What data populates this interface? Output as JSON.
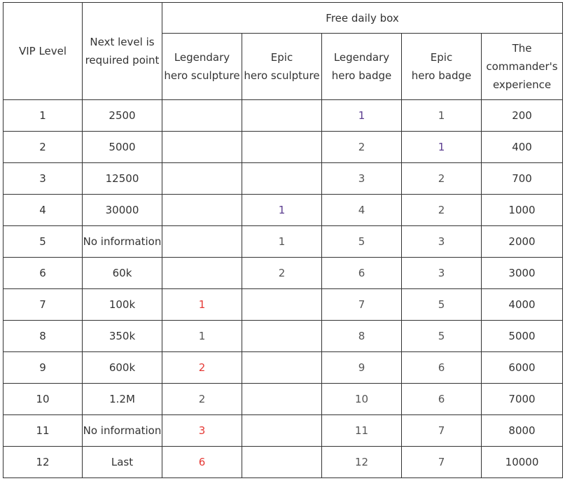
{
  "table": {
    "header_vip": "VIP Level",
    "header_next": "Next level is\nrequired point",
    "group_header": "Free daily box",
    "sub_headers": [
      "Legendary\nhero sculpture",
      "Epic\nhero sculpture",
      "Legendary\nhero badge",
      "Epic\nhero badge",
      "The\ncommander's\nexperience"
    ],
    "rows": [
      {
        "vip": "1",
        "next": "2500",
        "leg_sculpture": "",
        "epic_sculpture": "",
        "leg_badge": "1",
        "epic_badge": "1",
        "exp": "200"
      },
      {
        "vip": "2",
        "next": "5000",
        "leg_sculpture": "",
        "epic_sculpture": "",
        "leg_badge": "2",
        "epic_badge": "1",
        "exp": "400"
      },
      {
        "vip": "3",
        "next": "12500",
        "leg_sculpture": "",
        "epic_sculpture": "",
        "leg_badge": "3",
        "epic_badge": "2",
        "exp": "700"
      },
      {
        "vip": "4",
        "next": "30000",
        "leg_sculpture": "",
        "epic_sculpture": "1",
        "leg_badge": "4",
        "epic_badge": "2",
        "exp": "1000"
      },
      {
        "vip": "5",
        "next": "No information",
        "leg_sculpture": "",
        "epic_sculpture": "1",
        "leg_badge": "5",
        "epic_badge": "3",
        "exp": "2000"
      },
      {
        "vip": "6",
        "next": "60k",
        "leg_sculpture": "",
        "epic_sculpture": "2",
        "leg_badge": "6",
        "epic_badge": "3",
        "exp": "3000"
      },
      {
        "vip": "7",
        "next": "100k",
        "leg_sculpture": "1",
        "epic_sculpture": "",
        "leg_badge": "7",
        "epic_badge": "5",
        "exp": "4000"
      },
      {
        "vip": "8",
        "next": "350k",
        "leg_sculpture": "1",
        "epic_sculpture": "",
        "leg_badge": "8",
        "epic_badge": "5",
        "exp": "5000"
      },
      {
        "vip": "9",
        "next": "600k",
        "leg_sculpture": "2",
        "epic_sculpture": "",
        "leg_badge": "9",
        "epic_badge": "6",
        "exp": "6000"
      },
      {
        "vip": "10",
        "next": "1.2M",
        "leg_sculpture": "2",
        "epic_sculpture": "",
        "leg_badge": "10",
        "epic_badge": "6",
        "exp": "7000"
      },
      {
        "vip": "11",
        "next": "No information",
        "leg_sculpture": "3",
        "epic_sculpture": "",
        "leg_badge": "11",
        "epic_badge": "7",
        "exp": "8000"
      },
      {
        "vip": "12",
        "next": "Last",
        "leg_sculpture": "6",
        "epic_sculpture": "",
        "leg_badge": "12",
        "epic_badge": "7",
        "exp": "10000"
      }
    ],
    "colors": {
      "red": "#e53935",
      "purple": "#5b3d8f",
      "text": "#333333"
    }
  }
}
